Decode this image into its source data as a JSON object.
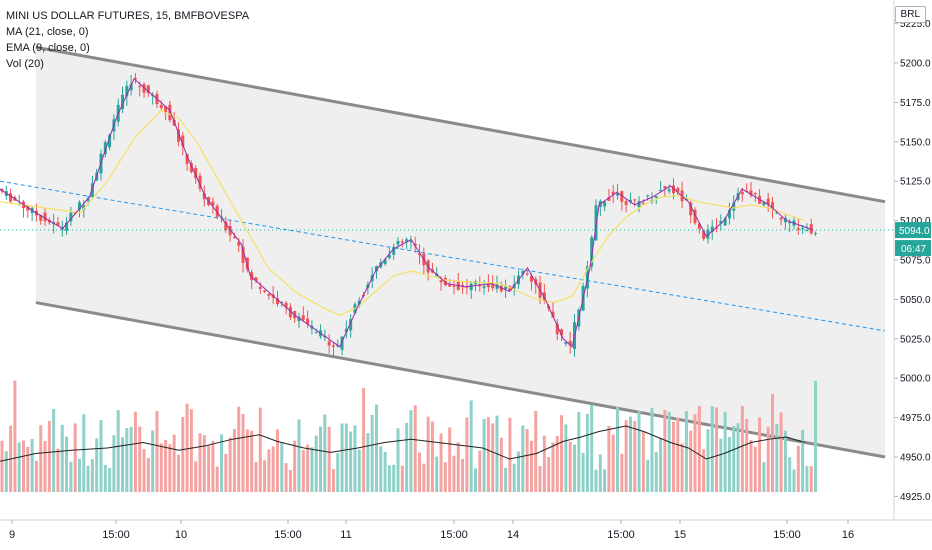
{
  "chart_data": {
    "type": "candlestick",
    "title": "MINI US DOLLAR FUTURES, 15, BMFBOVESPA",
    "indicators": [
      "MA (21, close, 0)",
      "EMA (9, close, 0)",
      "Vol (20)"
    ],
    "currency": "BRL",
    "price_axis": {
      "range": [
        4910,
        5240
      ],
      "ticks": [
        "5225.0",
        "5200.0",
        "5175.0",
        "5150.0",
        "5125.0",
        "5100.0",
        "5075.0",
        "5050.0",
        "5025.0",
        "5000.0",
        "4975.0",
        "4950.0",
        "4925.0"
      ]
    },
    "time_axis": {
      "ticks": [
        "9",
        "15:00",
        "10",
        "15:00",
        "11",
        "15:00",
        "14",
        "15:00",
        "15",
        "15:00",
        "16"
      ]
    },
    "last_price": "5094.0",
    "countdown": "06:47",
    "last_value": 5094.0,
    "channel": {
      "upper": [
        [
          0.04,
          5210
        ],
        [
          0.99,
          5112
        ]
      ],
      "lower": [
        [
          0.04,
          5048
        ],
        [
          0.99,
          4950
        ]
      ],
      "mid": [
        [
          0.0,
          5125
        ],
        [
          0.99,
          5030
        ]
      ]
    },
    "price_path": [
      [
        0.0,
        5120
      ],
      [
        0.04,
        5105
      ],
      [
        0.07,
        5095
      ],
      [
        0.1,
        5115
      ],
      [
        0.13,
        5165
      ],
      [
        0.15,
        5190
      ],
      [
        0.17,
        5180
      ],
      [
        0.19,
        5170
      ],
      [
        0.21,
        5140
      ],
      [
        0.23,
        5115
      ],
      [
        0.25,
        5100
      ],
      [
        0.27,
        5085
      ],
      [
        0.28,
        5065
      ],
      [
        0.31,
        5050
      ],
      [
        0.33,
        5040
      ],
      [
        0.36,
        5028
      ],
      [
        0.38,
        5020
      ],
      [
        0.4,
        5045
      ],
      [
        0.42,
        5068
      ],
      [
        0.44,
        5082
      ],
      [
        0.46,
        5088
      ],
      [
        0.48,
        5070
      ],
      [
        0.5,
        5060
      ],
      [
        0.52,
        5058
      ],
      [
        0.55,
        5060
      ],
      [
        0.57,
        5055
      ],
      [
        0.59,
        5070
      ],
      [
        0.61,
        5050
      ],
      [
        0.63,
        5025
      ],
      [
        0.64,
        5020
      ],
      [
        0.66,
        5070
      ],
      [
        0.67,
        5110
      ],
      [
        0.69,
        5118
      ],
      [
        0.71,
        5110
      ],
      [
        0.73,
        5115
      ],
      [
        0.75,
        5122
      ],
      [
        0.77,
        5112
      ],
      [
        0.79,
        5090
      ],
      [
        0.81,
        5100
      ],
      [
        0.83,
        5120
      ],
      [
        0.86,
        5110
      ],
      [
        0.88,
        5100
      ],
      [
        0.9,
        5096
      ],
      [
        0.91,
        5094
      ]
    ],
    "ma21_path": [
      [
        0.0,
        5112
      ],
      [
        0.05,
        5108
      ],
      [
        0.09,
        5105
      ],
      [
        0.12,
        5125
      ],
      [
        0.15,
        5152
      ],
      [
        0.18,
        5170
      ],
      [
        0.2,
        5165
      ],
      [
        0.22,
        5150
      ],
      [
        0.24,
        5130
      ],
      [
        0.26,
        5110
      ],
      [
        0.28,
        5090
      ],
      [
        0.3,
        5070
      ],
      [
        0.33,
        5055
      ],
      [
        0.36,
        5045
      ],
      [
        0.38,
        5040
      ],
      [
        0.4,
        5045
      ],
      [
        0.42,
        5055
      ],
      [
        0.44,
        5065
      ],
      [
        0.46,
        5068
      ],
      [
        0.48,
        5065
      ],
      [
        0.5,
        5062
      ],
      [
        0.53,
        5061
      ],
      [
        0.56,
        5060
      ],
      [
        0.58,
        5055
      ],
      [
        0.6,
        5050
      ],
      [
        0.62,
        5048
      ],
      [
        0.64,
        5052
      ],
      [
        0.66,
        5072
      ],
      [
        0.68,
        5090
      ],
      [
        0.7,
        5102
      ],
      [
        0.72,
        5110
      ],
      [
        0.74,
        5115
      ],
      [
        0.76,
        5116
      ],
      [
        0.78,
        5112
      ],
      [
        0.8,
        5110
      ],
      [
        0.82,
        5108
      ],
      [
        0.84,
        5110
      ],
      [
        0.86,
        5108
      ],
      [
        0.88,
        5104
      ],
      [
        0.9,
        5100
      ]
    ],
    "volume_range": [
      0,
      100
    ],
    "volume_path": [
      [
        0.0,
        28
      ],
      [
        0.04,
        35
      ],
      [
        0.08,
        38
      ],
      [
        0.12,
        40
      ],
      [
        0.16,
        45
      ],
      [
        0.2,
        38
      ],
      [
        0.23,
        42
      ],
      [
        0.26,
        48
      ],
      [
        0.29,
        52
      ],
      [
        0.31,
        46
      ],
      [
        0.34,
        40
      ],
      [
        0.37,
        36
      ],
      [
        0.4,
        40
      ],
      [
        0.43,
        45
      ],
      [
        0.46,
        48
      ],
      [
        0.5,
        44
      ],
      [
        0.54,
        40
      ],
      [
        0.57,
        30
      ],
      [
        0.6,
        35
      ],
      [
        0.63,
        46
      ],
      [
        0.65,
        50
      ],
      [
        0.67,
        55
      ],
      [
        0.7,
        60
      ],
      [
        0.72,
        55
      ],
      [
        0.75,
        45
      ],
      [
        0.77,
        40
      ],
      [
        0.79,
        30
      ],
      [
        0.81,
        35
      ],
      [
        0.84,
        45
      ],
      [
        0.86,
        48
      ],
      [
        0.88,
        50
      ],
      [
        0.9,
        45
      ]
    ]
  }
}
